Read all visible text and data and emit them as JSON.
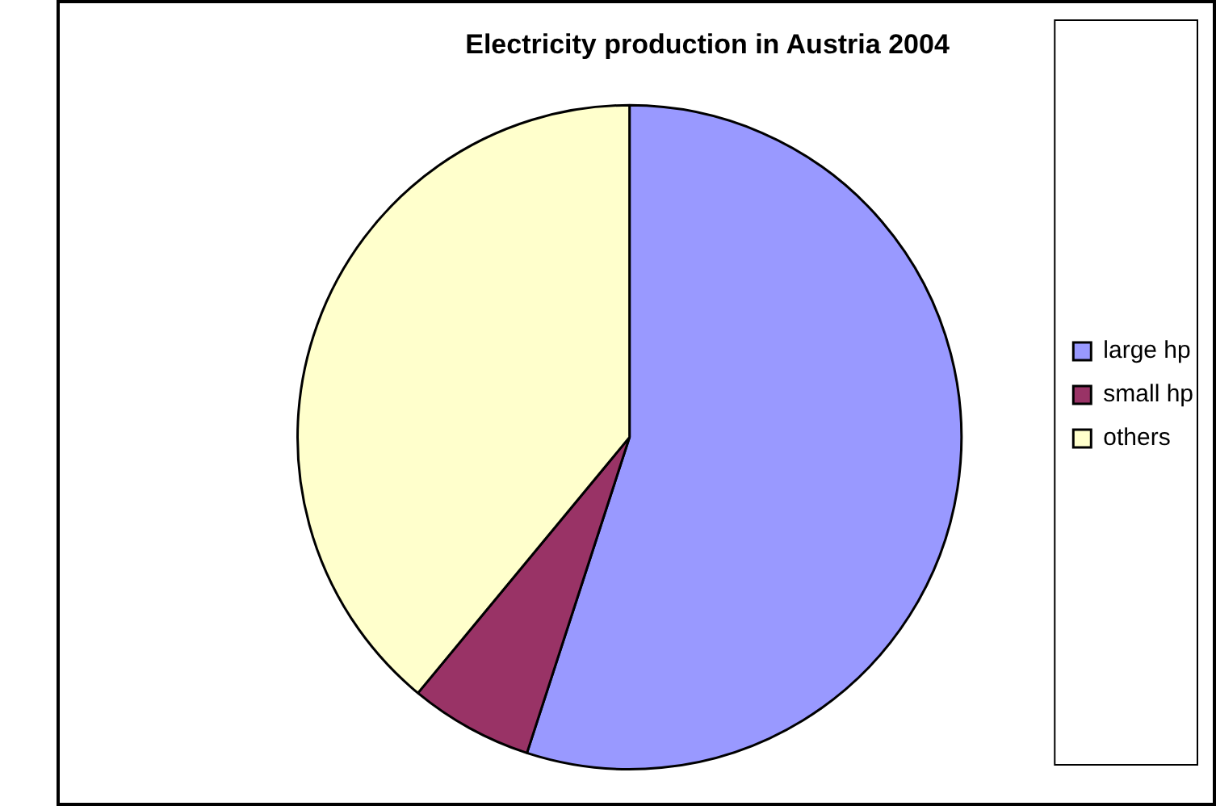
{
  "chart_data": {
    "type": "pie",
    "title": "Electricity production in Austria 2004",
    "categories": [
      "large hp",
      "small hp",
      "others"
    ],
    "values": [
      55,
      6,
      39
    ],
    "colors": [
      "#9999ff",
      "#993366",
      "#ffffcc"
    ],
    "legend": "right"
  }
}
